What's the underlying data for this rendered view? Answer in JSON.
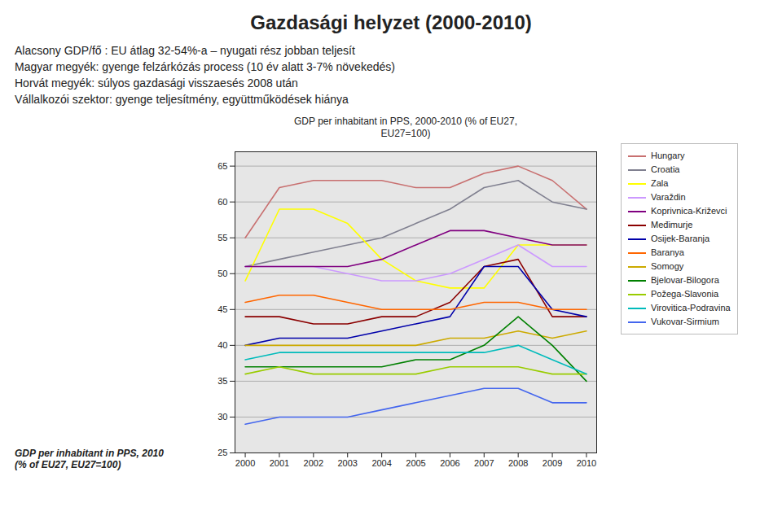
{
  "chart_data": {
    "type": "line",
    "title": "Gazdasági helyzet (2000-2010)",
    "subtitle": [
      "Alacsony GDP/fő : EU átlag 32-54%-a – nyugati rész jobban teljesít",
      "Magyar megyék:  gyenge felzárkózás process (10 év alatt 3-7% növekedés)",
      "Horvát megyék: súlyos gazdasági visszaesés 2008 után",
      "Vállalkozói szektor: gyenge teljesítmény, együttműködések hiánya"
    ],
    "annotations": [
      "GDP per inhabitant in PPS, 2000-2010 (% of EU27,\nEU27=100)",
      "GDP per inhabitant in PPS, 2010\n(% of EU27, EU27=100)"
    ],
    "x": [
      2000,
      2001,
      2002,
      2003,
      2004,
      2005,
      2006,
      2007,
      2008,
      2009,
      2010
    ],
    "xlim": [
      1999.7,
      2010.3
    ],
    "xticks": [
      2000,
      2001,
      2002,
      2003,
      2004,
      2005,
      2006,
      2007,
      2008,
      2009,
      2010
    ],
    "ylim": [
      25,
      67
    ],
    "yticks": [
      25,
      30,
      35,
      40,
      45,
      50,
      55,
      60,
      65
    ],
    "grid": true,
    "legend": "right",
    "series": [
      {
        "name": "Hungary",
        "color": "#C87070",
        "values": [
          55,
          62,
          63,
          63,
          63,
          62,
          62,
          64,
          65,
          63,
          59
        ]
      },
      {
        "name": "Croatia",
        "color": "#808090",
        "values": [
          51,
          52,
          53,
          54,
          55,
          57,
          59,
          62,
          63,
          60,
          59
        ]
      },
      {
        "name": "Zala",
        "color": "#FFFF00",
        "values": [
          49,
          59,
          59,
          57,
          52,
          49,
          48,
          48,
          54,
          54,
          54
        ]
      },
      {
        "name": "Varaždin",
        "color": "#CC99FF",
        "values": [
          51,
          51,
          51,
          50,
          49,
          49,
          50,
          52,
          54,
          51,
          51
        ]
      },
      {
        "name": "Koprivnica-Križevci",
        "color": "#800080",
        "values": [
          51,
          51,
          51,
          51,
          52,
          54,
          56,
          56,
          55,
          54,
          54
        ]
      },
      {
        "name": "Međimurje",
        "color": "#8B0000",
        "values": [
          44,
          44,
          43,
          43,
          44,
          44,
          46,
          51,
          52,
          44,
          44
        ]
      },
      {
        "name": "Osijek-Baranja",
        "color": "#0000AA",
        "values": [
          40,
          41,
          41,
          41,
          42,
          43,
          44,
          51,
          51,
          45,
          44
        ]
      },
      {
        "name": "Baranya",
        "color": "#FF6600",
        "values": [
          46,
          47,
          47,
          46,
          45,
          45,
          45,
          46,
          46,
          45,
          45
        ]
      },
      {
        "name": "Somogy",
        "color": "#CCAA00",
        "values": [
          40,
          40,
          40,
          40,
          40,
          40,
          41,
          41,
          42,
          41,
          42
        ]
      },
      {
        "name": "Bjelovar-Bilogora",
        "color": "#008000",
        "values": [
          37,
          37,
          37,
          37,
          37,
          38,
          38,
          40,
          44,
          40,
          35
        ]
      },
      {
        "name": "Požega-Slavonia",
        "color": "#99CC00",
        "values": [
          36,
          37,
          36,
          36,
          36,
          36,
          37,
          37,
          37,
          36,
          36
        ]
      },
      {
        "name": "Virovitica-Podravina",
        "color": "#00BBBB",
        "values": [
          38,
          39,
          39,
          39,
          39,
          39,
          39,
          39,
          40,
          38,
          36
        ]
      },
      {
        "name": "Vukovar-Sirmium",
        "color": "#4466EE",
        "values": [
          29,
          30,
          30,
          30,
          31,
          32,
          33,
          34,
          34,
          32,
          32
        ]
      }
    ]
  }
}
